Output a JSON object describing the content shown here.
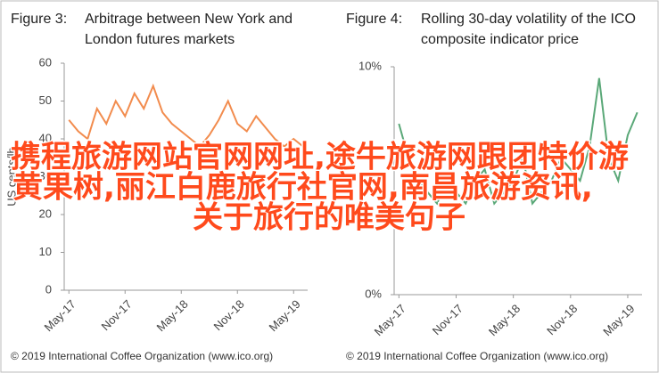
{
  "chart_data": [
    {
      "type": "line",
      "figure_label": "Figure 3:",
      "title_lines": [
        "Arbitrage between New York and",
        "London futures markets"
      ],
      "ylabel": "US cents/lb",
      "categories": [
        "May-17",
        null,
        null,
        null,
        null,
        null,
        "Nov-17",
        null,
        null,
        null,
        null,
        null,
        "May-18",
        null,
        null,
        null,
        null,
        null,
        "Nov-18",
        null,
        null,
        null,
        null,
        null,
        "May-19",
        null
      ],
      "series": [
        {
          "color": "#f28c4e",
          "values": [
            45,
            42,
            40,
            48,
            44,
            50,
            46,
            52,
            48,
            54,
            47,
            44,
            42,
            40,
            38,
            41,
            45,
            50,
            44,
            42,
            46,
            43,
            40,
            38,
            40,
            38
          ]
        }
      ],
      "ylim": [
        0,
        60
      ],
      "yticks": [
        0,
        10,
        20,
        30,
        40,
        50,
        60
      ],
      "source": "© 2019 International Coffee Organization (www.ico.org)"
    },
    {
      "type": "line",
      "figure_label": "Figure 4:",
      "title_lines": [
        "Rolling 30-day volatility of the ICO",
        "composite indicator price"
      ],
      "categories": [
        "May-17",
        null,
        null,
        null,
        null,
        null,
        "Nov-17",
        null,
        null,
        null,
        null,
        null,
        "May-18",
        null,
        null,
        null,
        null,
        null,
        "Nov-18",
        null,
        null,
        null,
        null,
        null,
        "May-19",
        null
      ],
      "series": [
        {
          "color": "#5aa878",
          "values": [
            7.5,
            6,
            5,
            4.5,
            4,
            5,
            4.5,
            4,
            5,
            5.5,
            4,
            4.5,
            5,
            6,
            4,
            4.5,
            5,
            6,
            5.5,
            5,
            6.5,
            9.5,
            6,
            5,
            7,
            8
          ]
        }
      ],
      "ylim": [
        0,
        10
      ],
      "yticks": [
        {
          "value": 0,
          "label": "0%"
        },
        {
          "value": 10,
          "label": "10%"
        }
      ],
      "source": "© 2019 International Coffee Organization (www.ico.org)"
    }
  ],
  "overlay": {
    "lines": [
      "携程旅游网站官网网址,途牛旅游网跟团特价游",
      "黄果树,丽江白鹿旅行社官网,南昌旅游资讯,",
      "关于旅行的唯美句子"
    ]
  }
}
